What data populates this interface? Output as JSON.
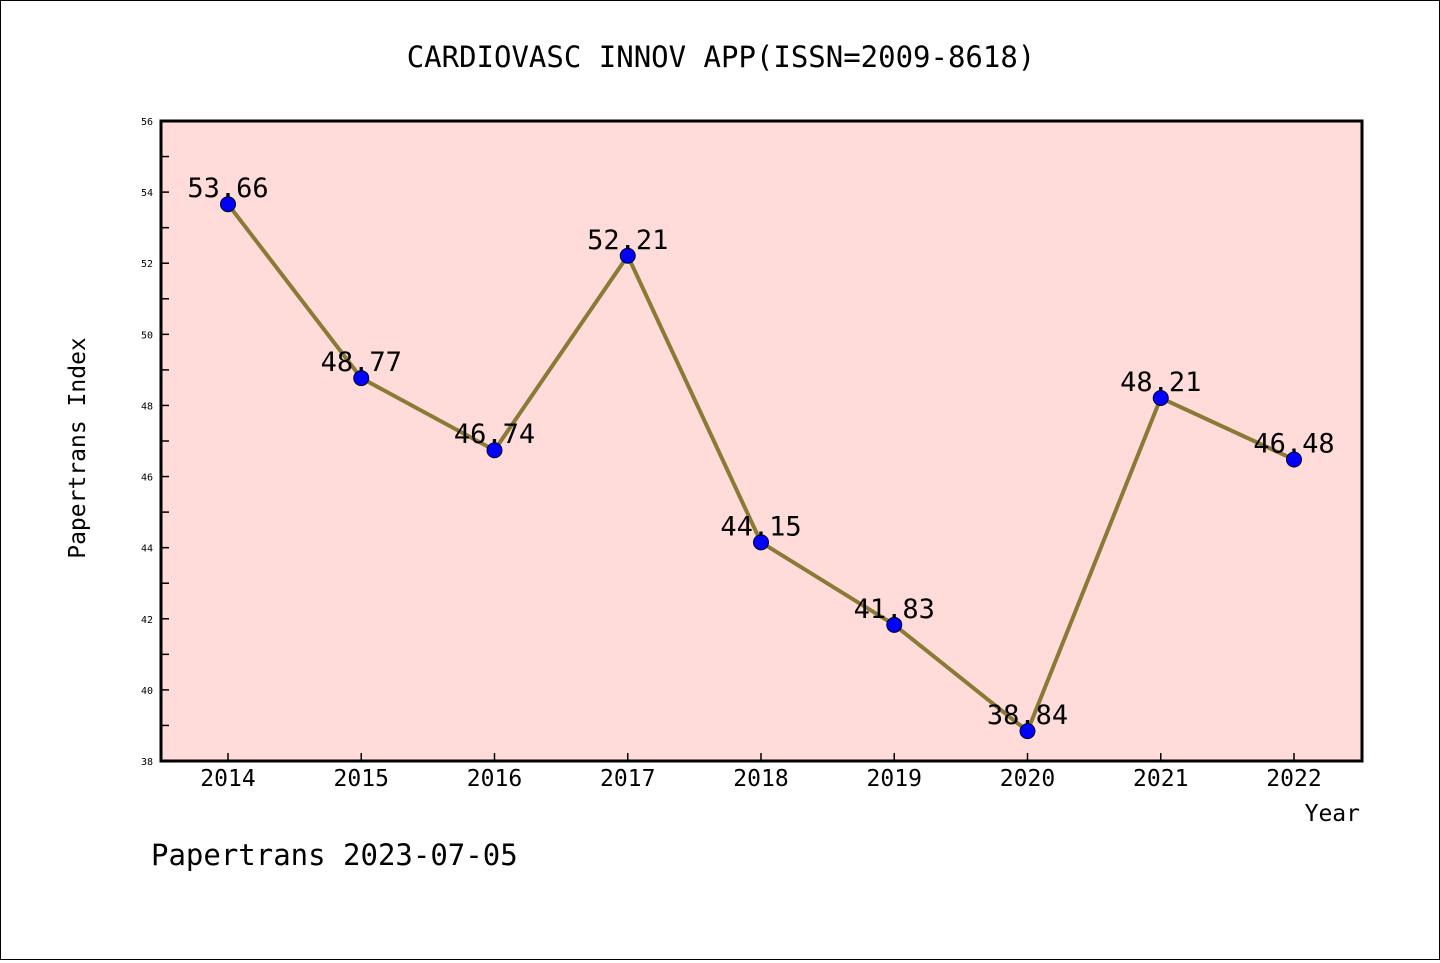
{
  "chart_data": {
    "type": "line",
    "title": "CARDIOVASC INNOV APP(ISSN=2009-8618)",
    "xlabel": "Year",
    "ylabel": "Papertrans Index",
    "x": [
      "2014",
      "2015",
      "2016",
      "2017",
      "2018",
      "2019",
      "2020",
      "2021",
      "2022"
    ],
    "series": [
      {
        "values": [
          53.66,
          48.77,
          46.74,
          52.21,
          44.15,
          41.83,
          38.84,
          48.21,
          46.48
        ]
      }
    ],
    "data_labels": [
      "53.66",
      "48.77",
      "46.74",
      "52.21",
      "44.15",
      "41.83",
      "38.84",
      "48.21",
      "46.48"
    ],
    "ylim": [
      38,
      56
    ],
    "yticks": [
      38,
      40,
      42,
      44,
      46,
      48,
      50,
      52,
      54,
      56
    ],
    "grid": false,
    "legend": "none",
    "colors": {
      "plot_background": "#ffdcda",
      "line": "#8b7a36",
      "marker": "#0000ff"
    }
  },
  "footer": {
    "note": "Papertrans 2023-07-05"
  }
}
